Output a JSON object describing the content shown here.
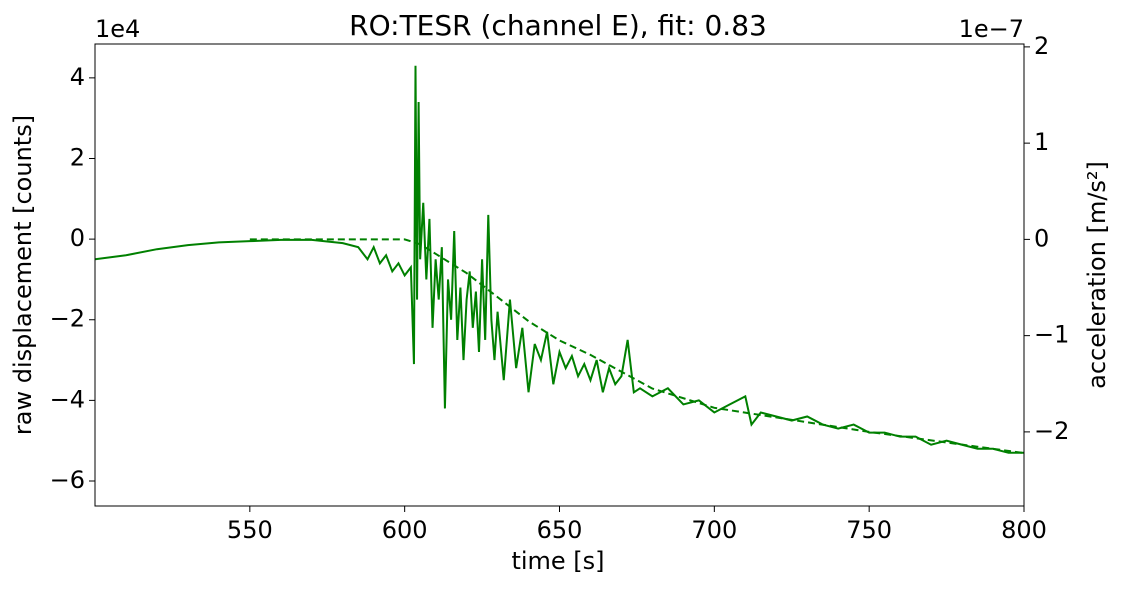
{
  "chart_data": {
    "type": "line",
    "title": "RO:TESR  (channel E), fit: 0.83",
    "x_label": "time [s]",
    "y_label": "raw displacement [counts]",
    "y2_label": "acceleration [m/s²]",
    "y_offset_label": "1e4",
    "y2_offset_label": "1e−7",
    "xlim": [
      500,
      800
    ],
    "xticks": [
      550,
      600,
      650,
      700,
      750,
      800
    ],
    "ylim": [
      -6.62,
      4.84
    ],
    "yticks": [
      {
        "value": -6,
        "label": "−6"
      },
      {
        "value": -4,
        "label": "−4"
      },
      {
        "value": -2,
        "label": "−2"
      },
      0,
      2,
      4
    ],
    "y2lim": [
      -2.77,
      2.03
    ],
    "y2ticks": [
      {
        "value": -2,
        "label": "−2"
      },
      {
        "value": -1,
        "label": "−1"
      },
      0,
      1,
      2
    ],
    "grid": false,
    "series": [
      {
        "color": "#008000",
        "dash": false,
        "x": [
          500,
          510,
          520,
          530,
          540,
          550,
          560,
          570,
          580,
          585,
          588,
          590,
          592,
          594,
          596,
          598,
          600,
          602,
          603,
          603.5,
          604,
          604.5,
          605,
          606,
          607,
          608,
          609,
          610,
          611,
          612,
          613,
          614,
          615,
          616,
          617,
          618,
          619,
          620,
          621,
          622,
          623,
          624,
          625,
          626,
          627,
          628,
          629,
          630,
          632,
          634,
          636,
          638,
          640,
          642,
          644,
          646,
          648,
          650,
          652,
          654,
          656,
          658,
          660,
          662,
          664,
          666,
          668,
          670,
          672,
          674,
          676,
          680,
          685,
          690,
          695,
          700,
          705,
          710,
          712,
          715,
          720,
          725,
          730,
          735,
          740,
          745,
          750,
          755,
          760,
          765,
          770,
          775,
          780,
          785,
          790,
          795,
          800
        ],
        "values": [
          -0.5,
          -0.4,
          -0.25,
          -0.15,
          -0.08,
          -0.05,
          -0.02,
          -0.02,
          -0.1,
          -0.2,
          -0.5,
          -0.2,
          -0.6,
          -0.4,
          -0.8,
          -0.6,
          -0.9,
          -0.7,
          -3.1,
          4.3,
          -1.5,
          3.4,
          -0.5,
          0.9,
          -1.0,
          0.5,
          -2.2,
          -0.5,
          -1.5,
          -0.2,
          -4.2,
          -1.0,
          -2.0,
          0.2,
          -2.5,
          -1.2,
          -3.0,
          -1.5,
          -0.8,
          -2.2,
          -1.3,
          -2.8,
          -0.5,
          -2.5,
          0.6,
          -2.0,
          -3.0,
          -1.8,
          -3.5,
          -1.5,
          -3.2,
          -2.2,
          -3.8,
          -2.6,
          -3.0,
          -2.3,
          -3.6,
          -2.8,
          -3.2,
          -2.9,
          -3.4,
          -3.1,
          -3.5,
          -3.0,
          -3.8,
          -3.2,
          -3.6,
          -3.4,
          -2.5,
          -3.8,
          -3.7,
          -3.9,
          -3.7,
          -4.1,
          -4.0,
          -4.3,
          -4.1,
          -3.9,
          -4.6,
          -4.3,
          -4.4,
          -4.5,
          -4.4,
          -4.6,
          -4.7,
          -4.6,
          -4.8,
          -4.8,
          -4.9,
          -4.9,
          -5.1,
          -5.0,
          -5.1,
          -5.2,
          -5.2,
          -5.3,
          -5.3
        ]
      },
      {
        "color": "#008000",
        "dash": true,
        "axis": "y2",
        "x": [
          550,
          585,
          600,
          605,
          610,
          620,
          630,
          640,
          650,
          660,
          680,
          700,
          750,
          800
        ],
        "values": [
          0,
          0,
          0,
          -0.05,
          -0.15,
          -0.35,
          -0.6,
          -0.85,
          -1.05,
          -1.2,
          -1.55,
          -1.75,
          -2.0,
          -2.22
        ]
      }
    ]
  }
}
